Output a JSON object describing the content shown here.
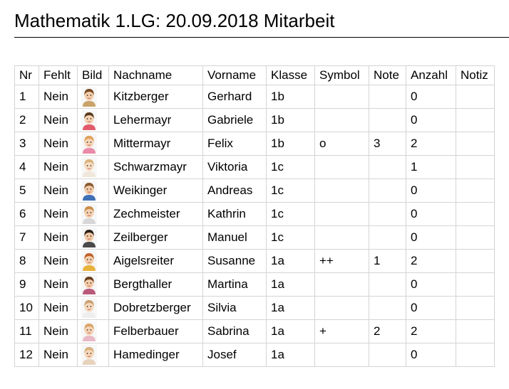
{
  "page": {
    "title": "Mathematik 1.LG: 20.09.2018 Mitarbeit"
  },
  "table": {
    "headers": [
      "Nr",
      "Fehlt",
      "Bild",
      "Nachname",
      "Vorname",
      "Klasse",
      "Symbol",
      "Note",
      "Anzahl",
      "Notiz"
    ],
    "rows": [
      {
        "nr": "1",
        "fehlt": "Nein",
        "photo": "child-photo-icon",
        "nachname": "Kitzberger",
        "vorname": "Gerhard",
        "klasse": "1b",
        "symbol": "",
        "note": "",
        "anzahl": "0",
        "notiz": ""
      },
      {
        "nr": "2",
        "fehlt": "Nein",
        "photo": "child-photo-icon",
        "nachname": "Lehermayr",
        "vorname": "Gabriele",
        "klasse": "1b",
        "symbol": "",
        "note": "",
        "anzahl": "0",
        "notiz": ""
      },
      {
        "nr": "3",
        "fehlt": "Nein",
        "photo": "child-photo-icon",
        "nachname": "Mittermayr",
        "vorname": "Felix",
        "klasse": "1b",
        "symbol": "o",
        "note": "3",
        "anzahl": "2",
        "notiz": ""
      },
      {
        "nr": "4",
        "fehlt": "Nein",
        "photo": "child-photo-icon",
        "nachname": "Schwarzmayr",
        "vorname": "Viktoria",
        "klasse": "1c",
        "symbol": "",
        "note": "",
        "anzahl": "1",
        "notiz": ""
      },
      {
        "nr": "5",
        "fehlt": "Nein",
        "photo": "child-photo-icon",
        "nachname": "Weikinger",
        "vorname": "Andreas",
        "klasse": "1c",
        "symbol": "",
        "note": "",
        "anzahl": "0",
        "notiz": ""
      },
      {
        "nr": "6",
        "fehlt": "Nein",
        "photo": "child-photo-icon",
        "nachname": "Zechmeister",
        "vorname": "Kathrin",
        "klasse": "1c",
        "symbol": "",
        "note": "",
        "anzahl": "0",
        "notiz": ""
      },
      {
        "nr": "7",
        "fehlt": "Nein",
        "photo": "child-photo-icon",
        "nachname": "Zeilberger",
        "vorname": "Manuel",
        "klasse": "1c",
        "symbol": "",
        "note": "",
        "anzahl": "0",
        "notiz": ""
      },
      {
        "nr": "8",
        "fehlt": "Nein",
        "photo": "child-photo-icon",
        "nachname": "Aigelsreiter",
        "vorname": "Susanne",
        "klasse": "1a",
        "symbol": "++",
        "note": "1",
        "anzahl": "2",
        "notiz": ""
      },
      {
        "nr": "9",
        "fehlt": "Nein",
        "photo": "child-photo-icon",
        "nachname": "Bergthaller",
        "vorname": "Martina",
        "klasse": "1a",
        "symbol": "",
        "note": "",
        "anzahl": "0",
        "notiz": ""
      },
      {
        "nr": "10",
        "fehlt": "Nein",
        "photo": "child-photo-icon",
        "nachname": "Dobretzberger",
        "vorname": "Silvia",
        "klasse": "1a",
        "symbol": "",
        "note": "",
        "anzahl": "0",
        "notiz": ""
      },
      {
        "nr": "11",
        "fehlt": "Nein",
        "photo": "child-photo-icon",
        "nachname": "Felberbauer",
        "vorname": "Sabrina",
        "klasse": "1a",
        "symbol": "+",
        "note": "2",
        "anzahl": "2",
        "notiz": ""
      },
      {
        "nr": "12",
        "fehlt": "Nein",
        "photo": "child-photo-icon",
        "nachname": "Hamedinger",
        "vorname": "Josef",
        "klasse": "1a",
        "symbol": "",
        "note": "",
        "anzahl": "0",
        "notiz": ""
      }
    ]
  }
}
